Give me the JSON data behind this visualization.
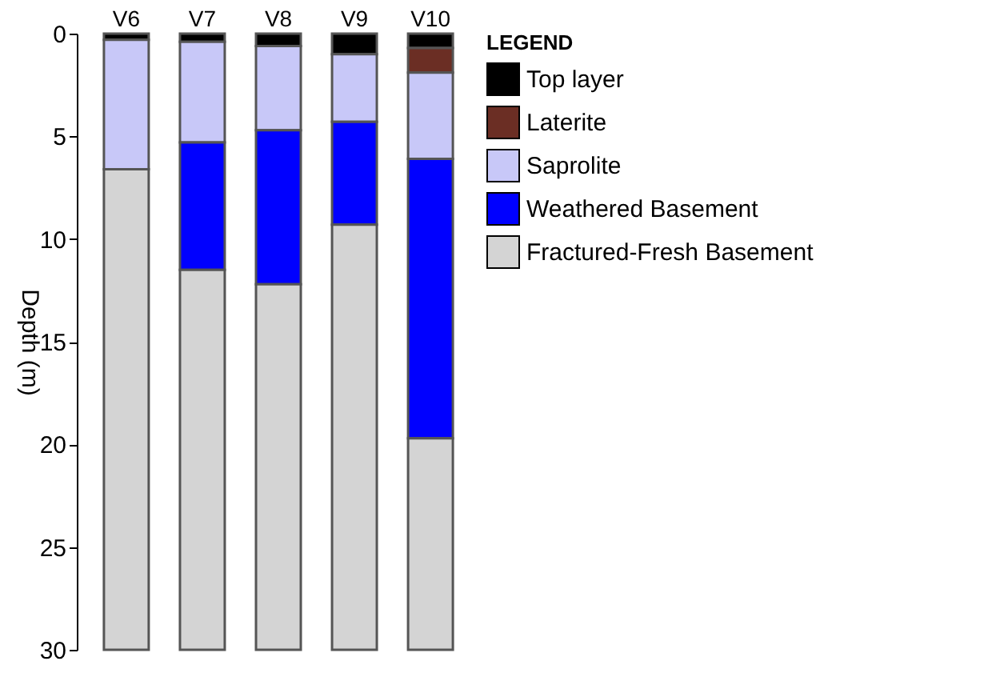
{
  "chart_data": {
    "type": "bar",
    "stacked": true,
    "ylabel": "Depth (m)",
    "legend_title": "LEGEND",
    "legend": "right",
    "categories": [
      "V6",
      "V7",
      "V8",
      "V9",
      "V10"
    ],
    "ylim": [
      30,
      0
    ],
    "yticks": [
      0,
      5,
      10,
      15,
      20,
      25,
      30
    ],
    "grid": false,
    "series": [
      {
        "name": "Top layer",
        "color": "#000000",
        "values": [
          0.3,
          0.4,
          0.6,
          1.0,
          0.7
        ]
      },
      {
        "name": "Laterite",
        "color": "#6b2e24",
        "values": [
          null,
          null,
          null,
          null,
          1.2
        ]
      },
      {
        "name": "Saprolite",
        "color": "#c8c8f8",
        "values": [
          6.3,
          4.9,
          4.1,
          3.3,
          4.2
        ]
      },
      {
        "name": "Weathered Basement",
        "color": "#0000ff",
        "values": [
          null,
          6.2,
          7.5,
          5.0,
          13.6
        ]
      },
      {
        "name": "Fractured-Fresh Basement",
        "color": "#d4d4d4",
        "values": [
          23.4,
          18.5,
          17.8,
          20.7,
          10.3
        ]
      }
    ]
  }
}
